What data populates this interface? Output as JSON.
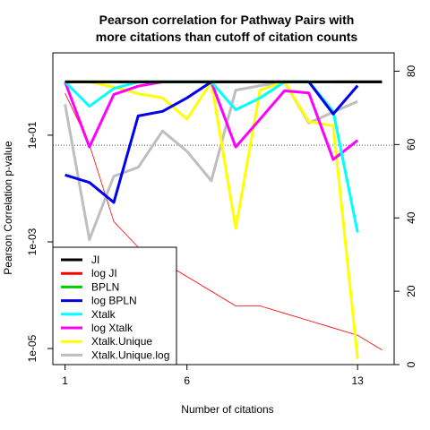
{
  "chart_data": {
    "type": "line",
    "title_lines": [
      "Pearson correlation for Pathway Pairs with",
      "more citations than cutoff of citation counts"
    ],
    "xlabel": "Number of citations",
    "ylabel": "Pearson Correlation p-value",
    "x_ticks": [
      1,
      6,
      13
    ],
    "x_range": [
      0.5,
      14.5
    ],
    "y_log": true,
    "y_range": [
      5e-06,
      3.5
    ],
    "y_ticks": [
      {
        "value": 0.1,
        "label": "1e-01"
      },
      {
        "value": 0.001,
        "label": "1e-03"
      },
      {
        "value": 1e-05,
        "label": "1e-05"
      }
    ],
    "y2_range": [
      0,
      85
    ],
    "y2_ticks": [
      0,
      20,
      40,
      60,
      80
    ],
    "hline": 0.065,
    "series": [
      {
        "name": "JI",
        "color": "#000000",
        "width": 3,
        "x": [
          1,
          2,
          3,
          4,
          5,
          6,
          7,
          8,
          9,
          10,
          11,
          12,
          13,
          14
        ],
        "y": [
          1,
          1,
          1,
          1,
          1,
          1,
          1,
          1,
          1,
          1,
          1,
          1,
          1,
          1
        ]
      },
      {
        "name": "log JI",
        "color": "#ff0000",
        "width": 3,
        "x": [
          12,
          13,
          14
        ],
        "y": [
          1,
          1,
          1
        ]
      },
      {
        "name": "BPLN",
        "color": "#00cd00",
        "width": 3,
        "x": [
          1,
          2,
          3,
          4,
          5,
          6,
          7,
          8,
          9,
          10,
          11,
          12,
          13,
          14
        ],
        "y": [
          1,
          1,
          1,
          1,
          1,
          1,
          1,
          1,
          1,
          1,
          1,
          1,
          1,
          1
        ]
      },
      {
        "name": "log BPLN",
        "color": "#0000ee",
        "width": 3,
        "x": [
          1,
          2,
          3,
          4,
          5,
          6,
          7,
          8,
          9,
          10,
          11,
          12,
          13
        ],
        "y": [
          0.018,
          0.013,
          0.0055,
          0.23,
          0.28,
          0.5,
          1,
          1,
          1,
          1,
          1,
          0.25,
          0.85
        ]
      },
      {
        "name": "Xtalk",
        "color": "#00ffff",
        "width": 3,
        "x": [
          1,
          2,
          3,
          4,
          5,
          6,
          7,
          8,
          9,
          10,
          11,
          12,
          13
        ],
        "y": [
          1,
          0.35,
          0.75,
          1,
          1,
          1,
          1,
          0.3,
          0.5,
          1,
          1,
          0.28,
          0.0015
        ]
      },
      {
        "name": "log Xtalk",
        "color": "#ff00ff",
        "width": 3,
        "x": [
          1,
          2,
          3,
          4,
          5,
          6,
          7,
          8,
          9,
          10,
          11,
          12,
          13
        ],
        "y": [
          1,
          0.06,
          0.58,
          0.83,
          1,
          1,
          1,
          0.06,
          0.2,
          0.68,
          0.62,
          0.035,
          0.08
        ]
      },
      {
        "name": "Xtalk.Unique",
        "color": "#ffff00",
        "width": 3,
        "x": [
          1,
          2,
          3,
          4,
          5,
          6,
          7,
          8,
          9,
          10,
          11,
          12,
          13
        ],
        "y": [
          1,
          1,
          0.8,
          0.6,
          0.5,
          0.2,
          1,
          0.0018,
          0.7,
          1,
          0.18,
          0.15,
          6.4e-06
        ]
      },
      {
        "name": "Xtalk.Unique.log",
        "color": "#bebebe",
        "width": 3,
        "x": [
          1,
          2,
          3,
          4,
          5,
          6,
          7,
          8,
          9,
          10,
          11,
          12,
          13
        ],
        "y": [
          0.38,
          0.0011,
          0.017,
          0.025,
          0.12,
          0.05,
          0.014,
          0.7,
          0.85,
          1,
          0.17,
          0.27,
          0.43
        ]
      }
    ],
    "secondary_series": {
      "color": "#ff0000",
      "x": [
        1,
        2,
        3,
        4,
        5,
        6,
        7,
        8,
        9,
        10,
        11,
        12,
        13,
        14
      ],
      "y2": [
        74,
        60,
        39,
        32,
        28,
        24,
        20,
        16,
        16,
        14,
        12,
        10,
        8,
        4
      ]
    }
  }
}
